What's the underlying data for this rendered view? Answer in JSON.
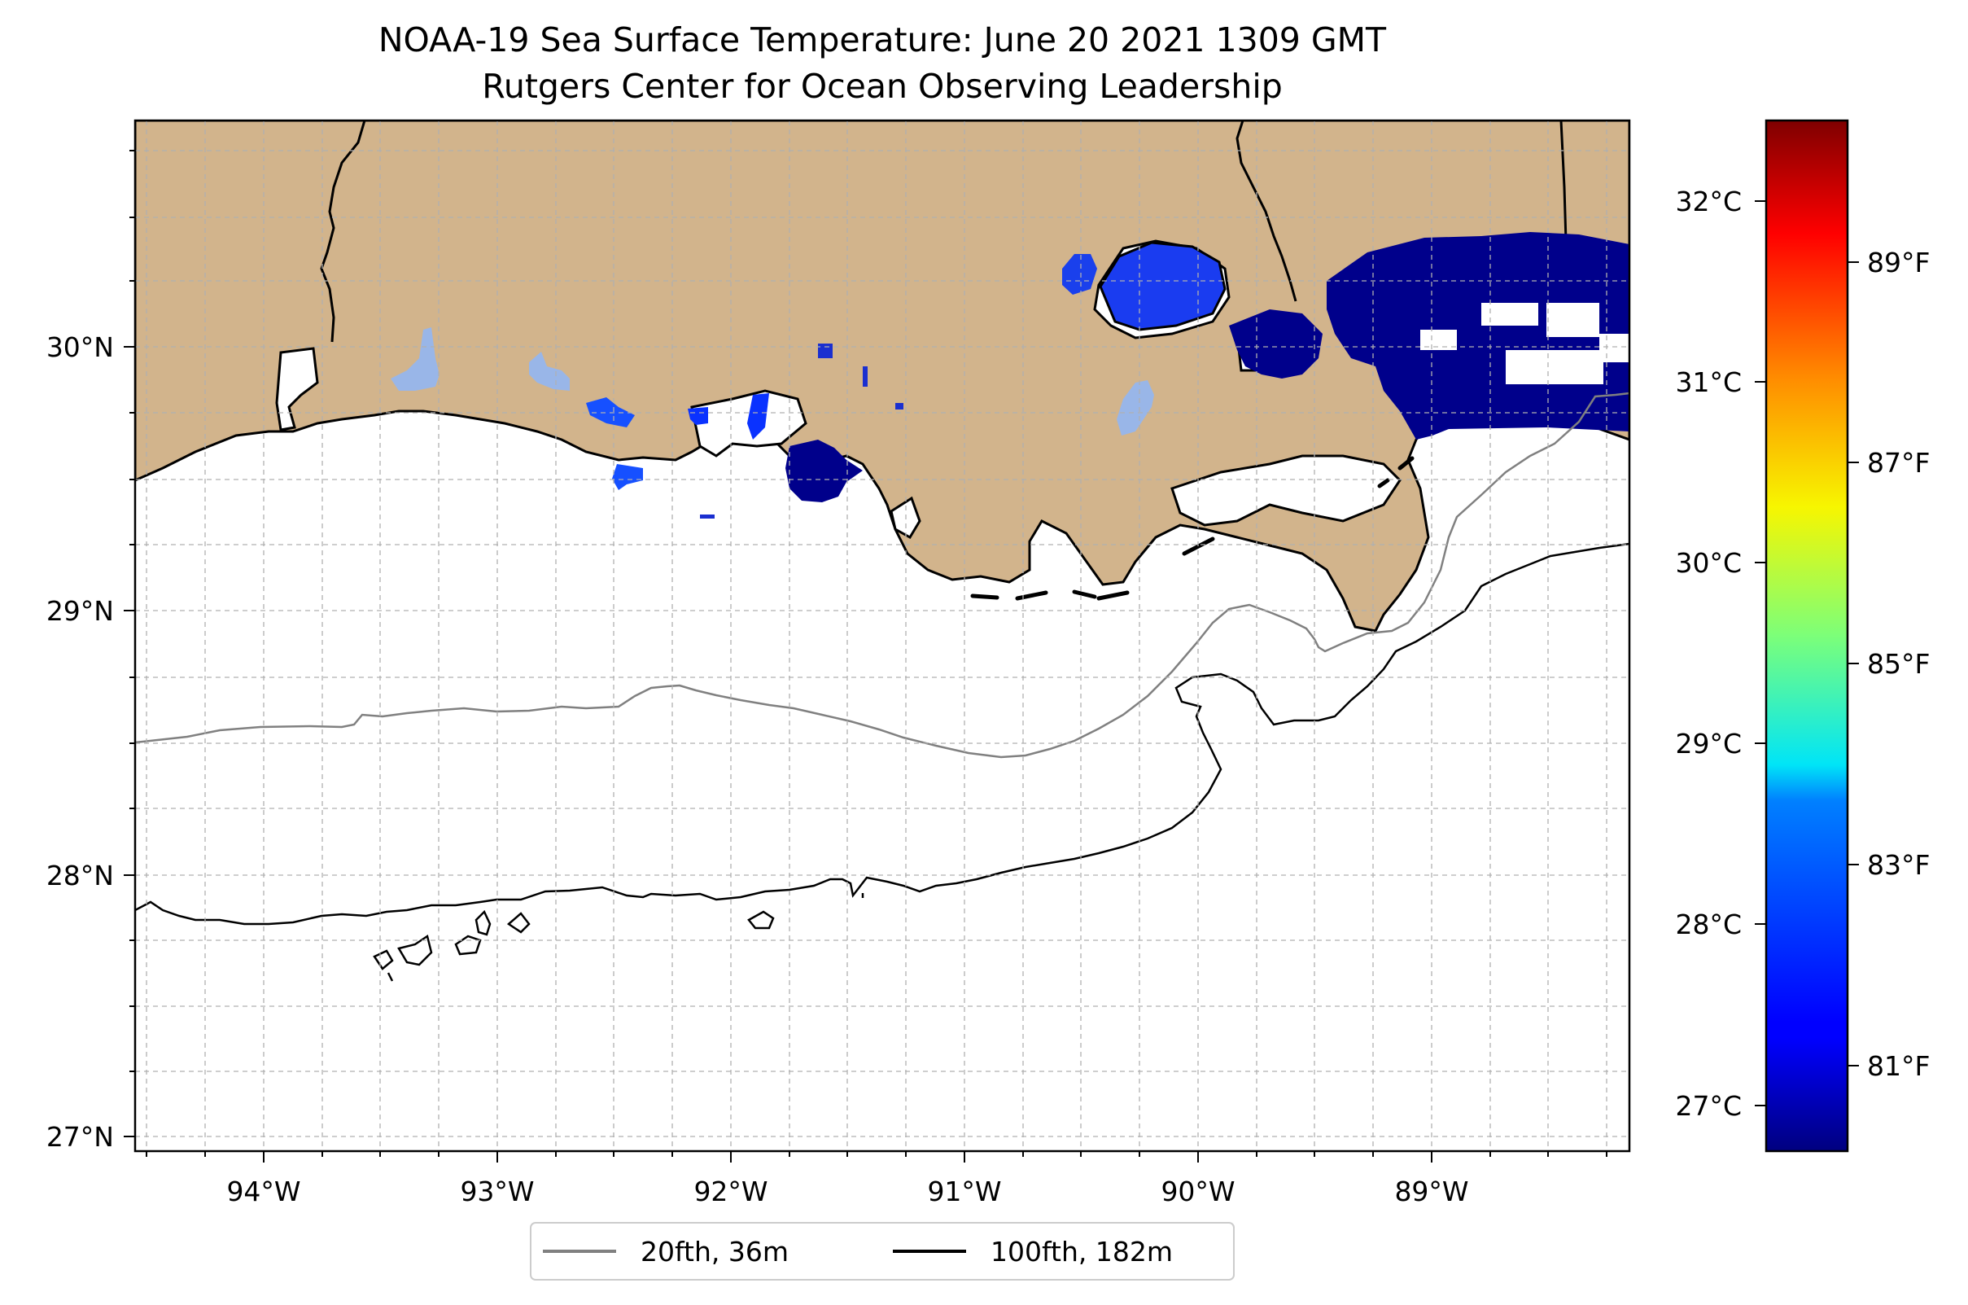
{
  "title": {
    "line1": "NOAA-19 Sea Surface Temperature: June 20 2021 1309 GMT",
    "line2": "Rutgers Center for Ocean Observing Leadership"
  },
  "map": {
    "lon_range": [
      -94.5,
      -88.1
    ],
    "lat_range": [
      26.95,
      30.85
    ],
    "land_color": "#d2b48c",
    "x_tick_labels": [
      "94°W",
      "93°W",
      "92°W",
      "91°W",
      "90°W",
      "89°W"
    ],
    "y_tick_labels": [
      "30°N",
      "29°N",
      "28°N",
      "27°N"
    ]
  },
  "colorbar": {
    "colormap": "jet",
    "min_c": 26.75,
    "max_c": 32.45,
    "celsius_labels": [
      "32°C",
      "31°C",
      "30°C",
      "29°C",
      "28°C",
      "27°C"
    ],
    "fahrenheit_labels": [
      "89°F",
      "87°F",
      "85°F",
      "83°F",
      "81°F"
    ]
  },
  "legend": {
    "items": [
      {
        "label": "20fth, 36m",
        "color": "#808080"
      },
      {
        "label": "100fth, 182m",
        "color": "#000000"
      }
    ]
  }
}
